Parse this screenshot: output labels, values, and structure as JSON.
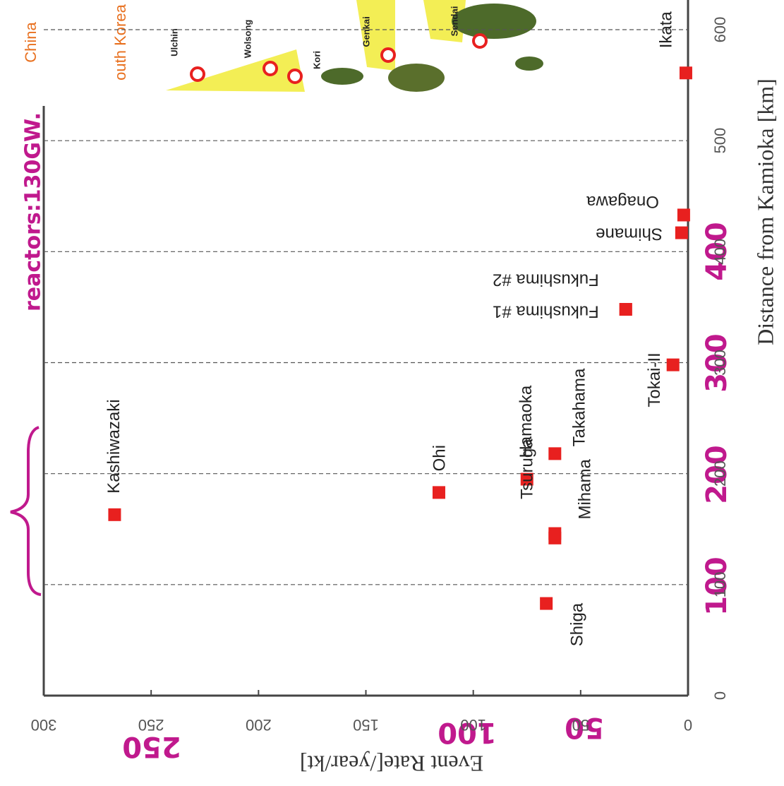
{
  "chart_data": {
    "type": "scatter",
    "x_label": "Distance from Kamioka [km]",
    "y_label": "Event Rate[/year/kt]",
    "categories": [
      "Kashiwazaki",
      "Ohi",
      "Hamaoka",
      "Takahama",
      "Tsuruga",
      "Mihama",
      "Shiga",
      "Tokai-II",
      "Fukushima #1",
      "Fukushima #2",
      "Shimane",
      "Onagawa",
      "Ikata"
    ],
    "x": [
      163,
      183,
      195,
      218,
      142,
      146,
      83,
      298,
      348,
      348,
      417,
      433,
      561
    ],
    "values": [
      267,
      116,
      75,
      62,
      62,
      62,
      66,
      7,
      29,
      29,
      3,
      2,
      1
    ],
    "color": "#e8201f",
    "xlim": [
      0,
      600
    ],
    "xticks": [
      0,
      100,
      200,
      300,
      400,
      500,
      600
    ],
    "ylim": [
      0,
      300
    ],
    "yticks": [
      0,
      50,
      100,
      150,
      200,
      250,
      300
    ],
    "grid": true,
    "map_labels": [
      "China",
      "outh Korea",
      "Ulchin",
      "Wolsong",
      "Kori",
      "Genkai",
      "Sendai"
    ],
    "annotations": [
      "reactors:130GW.",
      "100",
      "200",
      "300",
      "400",
      "250",
      "100",
      "50"
    ]
  }
}
